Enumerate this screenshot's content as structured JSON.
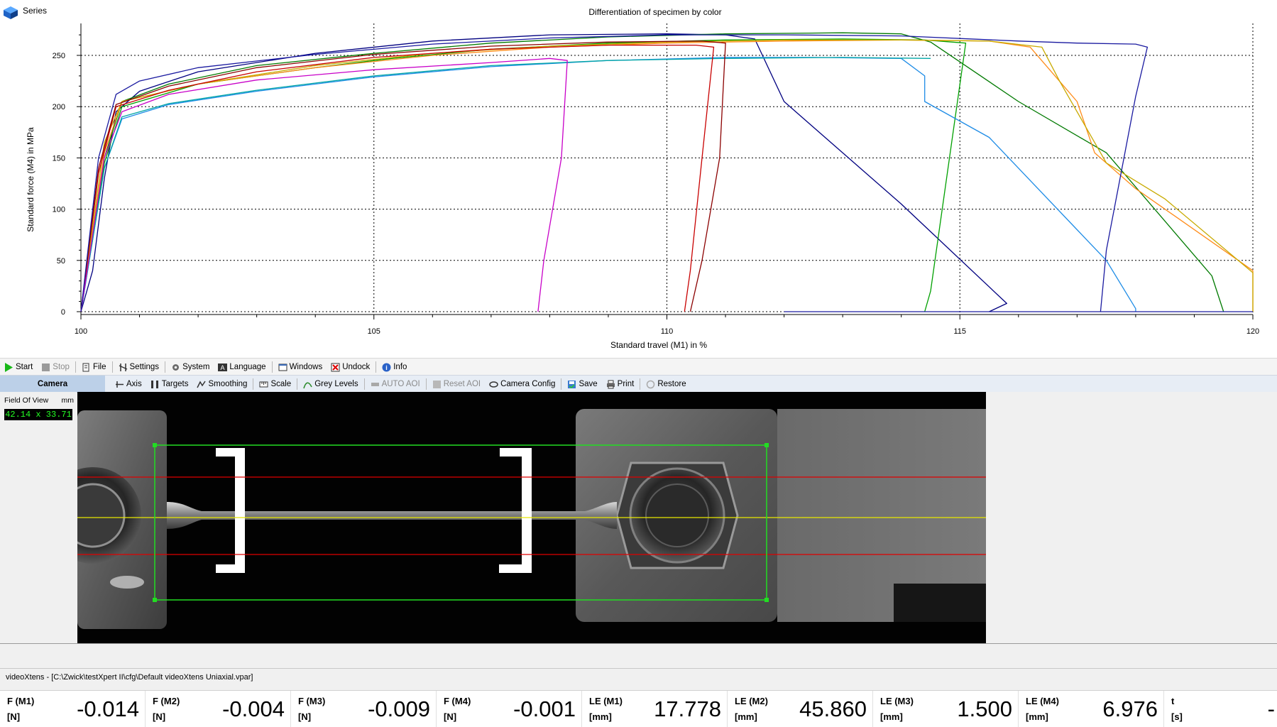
{
  "chart": {
    "series_button": "Series",
    "title": "Differentiation of specimen by color",
    "xlabel": "Standard travel (M1) in %",
    "ylabel": "Standard force (M4) in MPa"
  },
  "chart_data": {
    "type": "line",
    "title": "Differentiation of specimen by color",
    "xlabel": "Standard travel (M1) in %",
    "ylabel": "Standard force (M4) in MPa",
    "xlim": [
      100,
      120
    ],
    "ylim": [
      0,
      275
    ],
    "x_ticks": [
      100,
      105,
      110,
      115,
      120
    ],
    "y_ticks": [
      0,
      50,
      100,
      150,
      200,
      250
    ],
    "grid": true,
    "legend": "none",
    "series": [
      {
        "color": "#000080",
        "points": [
          [
            100,
            0
          ],
          [
            100.2,
            40
          ],
          [
            100.4,
            130
          ],
          [
            100.6,
            195
          ],
          [
            101,
            215
          ],
          [
            102,
            234
          ],
          [
            104,
            252
          ],
          [
            106,
            264
          ],
          [
            108,
            270
          ],
          [
            110,
            271
          ],
          [
            111,
            270
          ],
          [
            111.5,
            266
          ],
          [
            112,
            205
          ],
          [
            114,
            105
          ],
          [
            115.8,
            8
          ],
          [
            115.5,
            0
          ]
        ]
      },
      {
        "color": "#007a00",
        "points": [
          [
            100,
            0
          ],
          [
            100.4,
            150
          ],
          [
            100.7,
            205
          ],
          [
            101.5,
            222
          ],
          [
            103,
            240
          ],
          [
            105,
            252
          ],
          [
            107,
            262
          ],
          [
            109,
            268
          ],
          [
            111,
            271
          ],
          [
            113,
            272
          ],
          [
            114,
            271
          ],
          [
            114.5,
            263
          ],
          [
            116,
            205
          ],
          [
            117.5,
            155
          ],
          [
            119.3,
            35
          ],
          [
            119.5,
            0
          ]
        ]
      },
      {
        "color": "#00a000",
        "points": [
          [
            100,
            0
          ],
          [
            100.4,
            145
          ],
          [
            100.7,
            200
          ],
          [
            102,
            222
          ],
          [
            104,
            238
          ],
          [
            105.3,
            247
          ],
          [
            107,
            256
          ],
          [
            109,
            262
          ],
          [
            111,
            265
          ],
          [
            113,
            266
          ],
          [
            114.4,
            265
          ],
          [
            115.1,
            262
          ],
          [
            114.5,
            20
          ],
          [
            114.4,
            0
          ]
        ]
      },
      {
        "color": "#ff8c1a",
        "points": [
          [
            100,
            0
          ],
          [
            100.4,
            155
          ],
          [
            100.7,
            205
          ],
          [
            102,
            222
          ],
          [
            104,
            238
          ],
          [
            106,
            250
          ],
          [
            108,
            258
          ],
          [
            110,
            262
          ],
          [
            112,
            264
          ],
          [
            114,
            265
          ],
          [
            115.5,
            264
          ],
          [
            116.2,
            258
          ],
          [
            117,
            205
          ],
          [
            117.3,
            155
          ],
          [
            118,
            120
          ],
          [
            120,
            40
          ],
          [
            120,
            0
          ]
        ]
      },
      {
        "color": "#c8aa00",
        "points": [
          [
            100,
            0
          ],
          [
            100.4,
            165
          ],
          [
            100.7,
            205
          ],
          [
            102,
            222
          ],
          [
            104,
            240
          ],
          [
            106,
            252
          ],
          [
            108,
            259
          ],
          [
            110,
            263
          ],
          [
            112,
            265
          ],
          [
            114,
            265
          ],
          [
            115.5,
            264
          ],
          [
            116.4,
            258
          ],
          [
            116.7,
            225
          ],
          [
            117.5,
            145
          ],
          [
            118.5,
            110
          ],
          [
            120,
            38
          ],
          [
            120,
            0
          ]
        ]
      },
      {
        "color": "#1e8ce6",
        "points": [
          [
            100,
            0
          ],
          [
            100.4,
            140
          ],
          [
            100.7,
            188
          ],
          [
            101.5,
            202
          ],
          [
            103,
            215
          ],
          [
            105,
            229
          ],
          [
            107,
            239
          ],
          [
            109,
            245
          ],
          [
            111,
            248
          ],
          [
            112.5,
            248
          ],
          [
            114,
            247
          ],
          [
            114.4,
            230
          ],
          [
            114.4,
            205
          ],
          [
            115.5,
            170
          ],
          [
            117,
            80
          ],
          [
            117.5,
            50
          ],
          [
            118,
            3
          ],
          [
            118,
            0
          ]
        ]
      },
      {
        "color": "#00a5a5",
        "points": [
          [
            100,
            0
          ],
          [
            100.4,
            140
          ],
          [
            100.7,
            190
          ],
          [
            101.5,
            203
          ],
          [
            103,
            216
          ],
          [
            105,
            230
          ],
          [
            107,
            240
          ],
          [
            109,
            245
          ],
          [
            111,
            247
          ],
          [
            113,
            248
          ],
          [
            114.5,
            247
          ]
        ]
      },
      {
        "color": "#c80000",
        "points": [
          [
            100,
            0
          ],
          [
            100.3,
            135
          ],
          [
            100.6,
            200
          ],
          [
            101.5,
            216
          ],
          [
            103,
            234
          ],
          [
            105,
            248
          ],
          [
            107,
            256
          ],
          [
            109,
            260
          ],
          [
            110.5,
            260
          ],
          [
            110.8,
            258
          ],
          [
            110.6,
            150
          ],
          [
            110.4,
            40
          ],
          [
            110.3,
            0
          ]
        ]
      },
      {
        "color": "#8b0000",
        "points": [
          [
            100,
            0
          ],
          [
            100.3,
            140
          ],
          [
            100.6,
            202
          ],
          [
            101.5,
            220
          ],
          [
            103,
            238
          ],
          [
            105,
            251
          ],
          [
            107,
            259
          ],
          [
            109,
            263
          ],
          [
            110.6,
            264
          ],
          [
            111,
            262
          ],
          [
            110.9,
            150
          ],
          [
            110.6,
            50
          ],
          [
            110.4,
            0
          ]
        ]
      },
      {
        "color": "#c800c8",
        "points": [
          [
            100,
            0
          ],
          [
            100.4,
            150
          ],
          [
            100.7,
            195
          ],
          [
            101.5,
            212
          ],
          [
            103,
            226
          ],
          [
            105,
            236
          ],
          [
            107,
            243
          ],
          [
            108,
            247
          ],
          [
            108.3,
            245
          ],
          [
            108.2,
            150
          ],
          [
            107.9,
            50
          ],
          [
            107.8,
            0
          ]
        ]
      },
      {
        "color": "#1a1aa0",
        "points": [
          [
            100,
            0
          ],
          [
            100.3,
            150
          ],
          [
            100.6,
            212
          ],
          [
            101,
            225
          ],
          [
            102,
            238
          ],
          [
            104,
            251
          ],
          [
            106,
            261
          ],
          [
            108,
            267
          ],
          [
            110,
            270
          ],
          [
            112,
            270
          ],
          [
            114,
            269
          ],
          [
            116,
            264
          ],
          [
            117,
            262
          ],
          [
            118,
            261
          ],
          [
            118.2,
            258
          ],
          [
            118,
            210
          ],
          [
            117.8,
            150
          ],
          [
            117.5,
            60
          ],
          [
            117.4,
            0
          ]
        ]
      }
    ]
  },
  "toolbar1": {
    "start": "Start",
    "stop": "Stop",
    "file": "File",
    "settings": "Settings",
    "system": "System",
    "language": "Language",
    "windows": "Windows",
    "undock": "Undock",
    "info": "Info"
  },
  "toolbar2": {
    "camera_tab": "Camera",
    "axis": "Axis",
    "targets": "Targets",
    "smoothing": "Smoothing",
    "scale": "Scale",
    "grey_levels": "Grey Levels",
    "auto_aoi": "AUTO AOI",
    "reset_aoi": "Reset AOI",
    "camera_config": "Camera Config",
    "save": "Save",
    "print": "Print",
    "restore": "Restore"
  },
  "fov": {
    "label": "Field Of View",
    "unit": "mm",
    "value": "42.14 x 33.71"
  },
  "status_line": "videoXtens - [C:\\Zwick\\testXpert II\\cfg\\Default videoXtens Uniaxial.vpar]",
  "readouts": [
    {
      "name": "F (M1)",
      "unit": "[N]",
      "value": "-0.014"
    },
    {
      "name": "F (M2)",
      "unit": "[N]",
      "value": "-0.004"
    },
    {
      "name": "F (M3)",
      "unit": "[N]",
      "value": "-0.009"
    },
    {
      "name": "F (M4)",
      "unit": "[N]",
      "value": "-0.001"
    },
    {
      "name": "LE (M1)",
      "unit": "[mm]",
      "value": "17.778"
    },
    {
      "name": "LE (M2)",
      "unit": "[mm]",
      "value": "45.860"
    },
    {
      "name": "LE (M3)",
      "unit": "[mm]",
      "value": "1.500"
    },
    {
      "name": "LE (M4)",
      "unit": "[mm]",
      "value": "6.976"
    },
    {
      "name": "t",
      "unit": "[s]",
      "value": "-"
    }
  ],
  "colors": {
    "camera_bg": "#020202",
    "aoi_box": "#22dd22",
    "guide_red": "#e00000",
    "guide_yellow": "#e8e800",
    "fov_text": "#24ff24"
  }
}
